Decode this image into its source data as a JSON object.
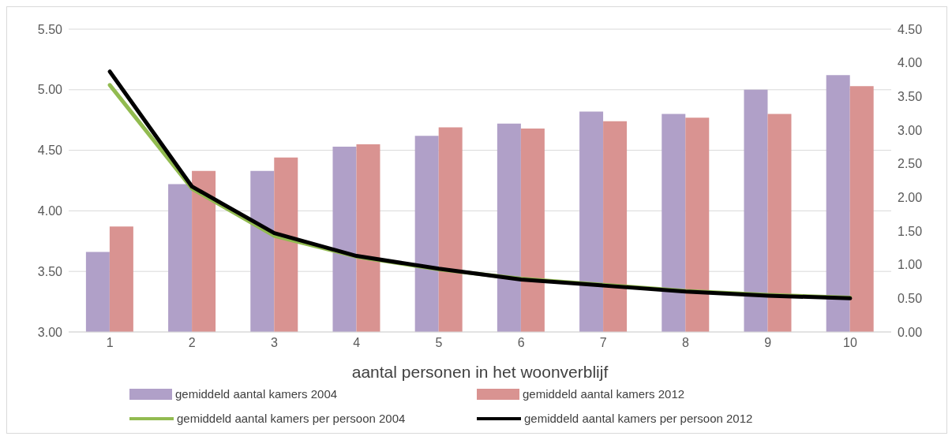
{
  "chart_data": {
    "type": "bar",
    "xlabel": "aantal personen in het woonverblijf",
    "categories": [
      "1",
      "2",
      "3",
      "4",
      "5",
      "6",
      "7",
      "8",
      "9",
      "10"
    ],
    "series": [
      {
        "name": "gemiddeld aantal kamers 2004",
        "color": "#b0a0c8",
        "values": [
          3.66,
          4.22,
          4.33,
          4.53,
          4.62,
          4.72,
          4.82,
          4.8,
          5.0,
          5.12
        ]
      },
      {
        "name": "gemiddeld aantal kamers 2012",
        "color": "#d99391",
        "values": [
          3.87,
          4.33,
          4.44,
          4.55,
          4.69,
          4.68,
          4.74,
          4.77,
          4.8,
          5.03
        ]
      },
      {
        "name": "gemiddeld aantal kamers per persoon 2004",
        "type": "line",
        "axis": "y2",
        "color": "#92bb50",
        "values": [
          3.67,
          2.13,
          1.43,
          1.12,
          0.93,
          0.79,
          0.7,
          0.61,
          0.55,
          0.51
        ]
      },
      {
        "name": "gemiddeld aantal kamers per persoon 2012",
        "type": "line",
        "axis": "y2",
        "color": "#000000",
        "values": [
          3.87,
          2.16,
          1.47,
          1.13,
          0.94,
          0.78,
          0.69,
          0.6,
          0.54,
          0.5
        ]
      }
    ],
    "ylim": [
      3,
      5.5
    ],
    "yticks": [
      {
        "value": 3,
        "label": "3.00"
      },
      {
        "value": 3.5,
        "label": "3.50"
      },
      {
        "value": 4,
        "label": "4.00"
      },
      {
        "value": 4.5,
        "label": "4.50"
      },
      {
        "value": 5,
        "label": "5.00"
      },
      {
        "value": 5.5,
        "label": "5.50"
      }
    ],
    "y2lim": [
      0,
      4.5
    ],
    "y2ticks": [
      {
        "value": 0,
        "label": "0.00"
      },
      {
        "value": 0.5,
        "label": "0.50"
      },
      {
        "value": 1,
        "label": "1.00"
      },
      {
        "value": 1.5,
        "label": "1.50"
      },
      {
        "value": 2,
        "label": "2.00"
      },
      {
        "value": 2.5,
        "label": "2.50"
      },
      {
        "value": 3,
        "label": "3.00"
      },
      {
        "value": 3.5,
        "label": "3.50"
      },
      {
        "value": 4,
        "label": "4.00"
      },
      {
        "value": 4.5,
        "label": "4.50"
      }
    ],
    "grid": "y",
    "legend": "bottom",
    "marker": "none",
    "line_style": "solid"
  }
}
